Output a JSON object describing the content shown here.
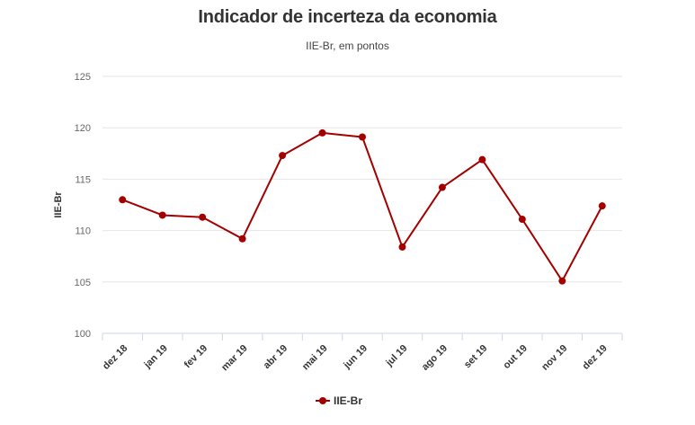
{
  "chart_data": {
    "type": "line",
    "title": "Indicador de incerteza da economia",
    "subtitle": "IIE-Br, em pontos",
    "ylabel": "IIE-Br",
    "xlabel": "",
    "categories": [
      "dez 18",
      "jan 19",
      "fev 19",
      "mar 19",
      "abr 19",
      "mai 19",
      "jun 19",
      "jul 19",
      "ago 19",
      "set 19",
      "out 19",
      "nov 19",
      "dez 19"
    ],
    "series": [
      {
        "name": "IIE-Br",
        "color": "#a30000",
        "values": [
          113.0,
          111.5,
          111.3,
          109.2,
          117.3,
          119.5,
          119.1,
          108.4,
          114.2,
          116.9,
          111.1,
          105.1,
          112.4
        ]
      }
    ],
    "ylim": [
      100,
      125
    ],
    "yticks": [
      100,
      105,
      110,
      115,
      120,
      125
    ],
    "grid": true,
    "legend_position": "bottom-center"
  }
}
